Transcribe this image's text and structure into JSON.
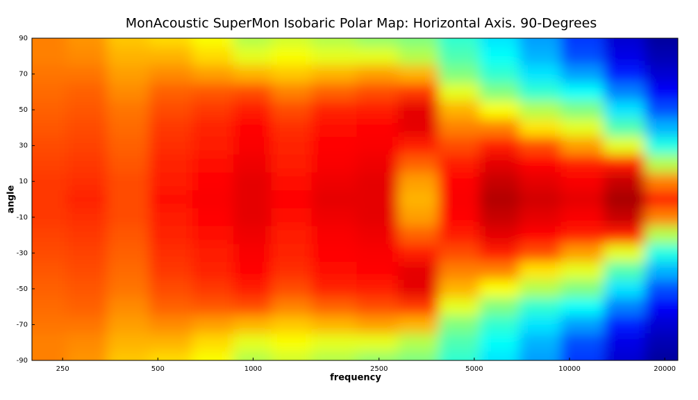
{
  "chart_data": {
    "type": "heatmap",
    "title": "MonAcoustic SuperMon Isobaric Polar Map: Horizontal Axis. 90-Degrees",
    "x_label": "frequency",
    "y_label": "angle",
    "x_scale": "log",
    "xlim": [
      200,
      22000
    ],
    "ylim": [
      -90,
      90
    ],
    "xticks": [
      250,
      500,
      1000,
      2500,
      5000,
      10000,
      20000
    ],
    "yticks": [
      90,
      70,
      50,
      30,
      10,
      -10,
      -30,
      -50,
      -70,
      -90
    ],
    "colormap": "jet",
    "clim": [
      0,
      1
    ],
    "x": [
      220,
      300,
      400,
      550,
      750,
      1000,
      1300,
      1800,
      2500,
      3300,
      4500,
      6000,
      8000,
      11000,
      15000,
      20000
    ],
    "y": [
      90,
      80,
      70,
      60,
      50,
      40,
      30,
      20,
      10,
      0,
      -10,
      -20,
      -30,
      -40,
      -50,
      -60,
      -70,
      -80,
      -90
    ],
    "values": [
      [
        0.75,
        0.73,
        0.68,
        0.66,
        0.62,
        0.55,
        0.58,
        0.55,
        0.52,
        0.5,
        0.42,
        0.35,
        0.28,
        0.18,
        0.08,
        0.03
      ],
      [
        0.75,
        0.74,
        0.7,
        0.7,
        0.66,
        0.6,
        0.62,
        0.6,
        0.6,
        0.55,
        0.45,
        0.38,
        0.3,
        0.2,
        0.1,
        0.05
      ],
      [
        0.76,
        0.76,
        0.72,
        0.74,
        0.72,
        0.7,
        0.68,
        0.7,
        0.72,
        0.7,
        0.5,
        0.42,
        0.35,
        0.28,
        0.15,
        0.08
      ],
      [
        0.77,
        0.78,
        0.74,
        0.78,
        0.79,
        0.8,
        0.75,
        0.78,
        0.8,
        0.82,
        0.6,
        0.5,
        0.42,
        0.38,
        0.25,
        0.12
      ],
      [
        0.78,
        0.79,
        0.76,
        0.8,
        0.82,
        0.85,
        0.8,
        0.84,
        0.85,
        0.9,
        0.7,
        0.62,
        0.55,
        0.5,
        0.35,
        0.2
      ],
      [
        0.79,
        0.8,
        0.77,
        0.82,
        0.84,
        0.87,
        0.83,
        0.86,
        0.87,
        0.9,
        0.75,
        0.75,
        0.65,
        0.6,
        0.45,
        0.3
      ],
      [
        0.8,
        0.81,
        0.78,
        0.83,
        0.85,
        0.88,
        0.84,
        0.87,
        0.88,
        0.85,
        0.8,
        0.85,
        0.8,
        0.72,
        0.6,
        0.4
      ],
      [
        0.81,
        0.82,
        0.79,
        0.84,
        0.86,
        0.89,
        0.85,
        0.88,
        0.89,
        0.78,
        0.85,
        0.9,
        0.87,
        0.85,
        0.85,
        0.55
      ],
      [
        0.82,
        0.83,
        0.8,
        0.85,
        0.87,
        0.9,
        0.86,
        0.89,
        0.9,
        0.72,
        0.87,
        0.93,
        0.9,
        0.88,
        0.93,
        0.75
      ],
      [
        0.82,
        0.84,
        0.8,
        0.86,
        0.88,
        0.9,
        0.87,
        0.9,
        0.9,
        0.7,
        0.88,
        0.95,
        0.92,
        0.9,
        0.96,
        0.85
      ],
      [
        0.82,
        0.83,
        0.8,
        0.85,
        0.87,
        0.9,
        0.86,
        0.89,
        0.9,
        0.72,
        0.87,
        0.93,
        0.9,
        0.88,
        0.93,
        0.75
      ],
      [
        0.81,
        0.82,
        0.79,
        0.84,
        0.86,
        0.89,
        0.85,
        0.88,
        0.89,
        0.78,
        0.85,
        0.9,
        0.87,
        0.85,
        0.85,
        0.55
      ],
      [
        0.8,
        0.81,
        0.78,
        0.83,
        0.85,
        0.88,
        0.84,
        0.87,
        0.88,
        0.85,
        0.8,
        0.85,
        0.8,
        0.72,
        0.6,
        0.4
      ],
      [
        0.79,
        0.8,
        0.77,
        0.82,
        0.84,
        0.87,
        0.83,
        0.86,
        0.87,
        0.9,
        0.75,
        0.75,
        0.65,
        0.6,
        0.45,
        0.3
      ],
      [
        0.78,
        0.79,
        0.76,
        0.8,
        0.82,
        0.85,
        0.8,
        0.84,
        0.85,
        0.9,
        0.7,
        0.62,
        0.55,
        0.5,
        0.35,
        0.2
      ],
      [
        0.77,
        0.78,
        0.74,
        0.78,
        0.79,
        0.8,
        0.75,
        0.78,
        0.8,
        0.82,
        0.6,
        0.5,
        0.42,
        0.38,
        0.25,
        0.12
      ],
      [
        0.76,
        0.76,
        0.72,
        0.74,
        0.72,
        0.7,
        0.68,
        0.7,
        0.72,
        0.7,
        0.5,
        0.42,
        0.35,
        0.28,
        0.15,
        0.08
      ],
      [
        0.75,
        0.74,
        0.7,
        0.7,
        0.66,
        0.6,
        0.62,
        0.6,
        0.6,
        0.55,
        0.45,
        0.38,
        0.3,
        0.2,
        0.1,
        0.05
      ],
      [
        0.75,
        0.73,
        0.68,
        0.66,
        0.62,
        0.55,
        0.58,
        0.55,
        0.52,
        0.5,
        0.42,
        0.35,
        0.28,
        0.18,
        0.08,
        0.03
      ]
    ]
  }
}
